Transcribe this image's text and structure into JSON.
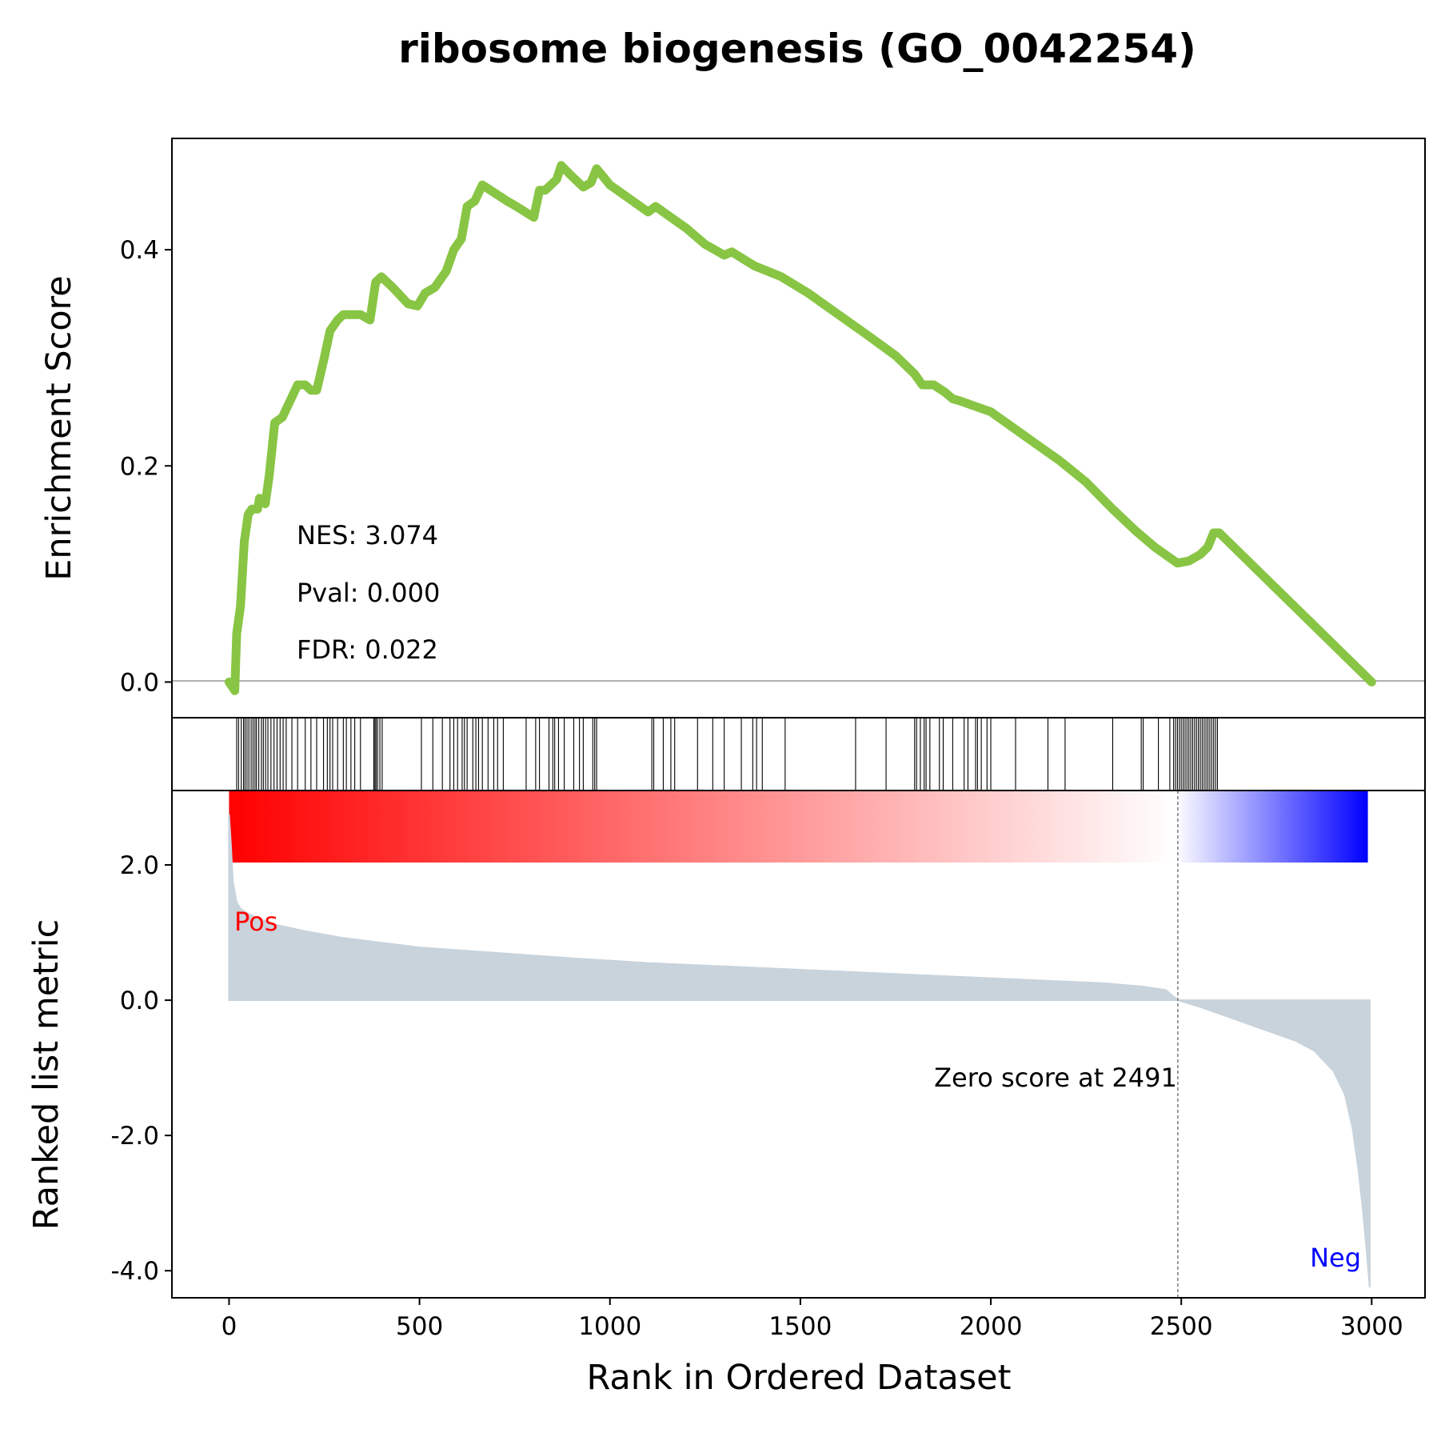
{
  "chart_data": {
    "type": "line",
    "title": "ribosome biogenesis (GO_0042254)",
    "xlabel": "Rank in Ordered Dataset",
    "xlim": [
      -150,
      3140
    ],
    "x_ticks": [
      0,
      500,
      1000,
      1500,
      2000,
      2500,
      3000
    ],
    "x_tick_labels": [
      "0",
      "500",
      "1000",
      "1500",
      "2000",
      "2500",
      "3000"
    ],
    "enrichment": {
      "ylabel": "Enrichment Score",
      "ylim": [
        -0.033,
        0.503
      ],
      "y_ticks": [
        0.0,
        0.2,
        0.4
      ],
      "y_tick_labels": [
        "0.0",
        "0.2",
        "0.4"
      ],
      "color": "#88c544",
      "stats": [
        "NES: 3.074",
        "Pval: 0.000",
        "FDR: 0.022"
      ],
      "points": [
        [
          0,
          0.0
        ],
        [
          15,
          -0.008
        ],
        [
          20,
          0.045
        ],
        [
          30,
          0.07
        ],
        [
          40,
          0.13
        ],
        [
          50,
          0.155
        ],
        [
          60,
          0.16
        ],
        [
          75,
          0.16
        ],
        [
          80,
          0.17
        ],
        [
          95,
          0.165
        ],
        [
          105,
          0.19
        ],
        [
          120,
          0.24
        ],
        [
          140,
          0.245
        ],
        [
          160,
          0.26
        ],
        [
          180,
          0.275
        ],
        [
          200,
          0.275
        ],
        [
          215,
          0.27
        ],
        [
          230,
          0.27
        ],
        [
          250,
          0.3
        ],
        [
          265,
          0.325
        ],
        [
          285,
          0.335
        ],
        [
          300,
          0.34
        ],
        [
          325,
          0.34
        ],
        [
          345,
          0.34
        ],
        [
          370,
          0.335
        ],
        [
          385,
          0.37
        ],
        [
          400,
          0.375
        ],
        [
          430,
          0.365
        ],
        [
          470,
          0.35
        ],
        [
          495,
          0.348
        ],
        [
          515,
          0.36
        ],
        [
          540,
          0.365
        ],
        [
          570,
          0.38
        ],
        [
          590,
          0.4
        ],
        [
          610,
          0.41
        ],
        [
          625,
          0.44
        ],
        [
          645,
          0.445
        ],
        [
          665,
          0.46
        ],
        [
          730,
          0.445
        ],
        [
          755,
          0.44
        ],
        [
          800,
          0.43
        ],
        [
          815,
          0.455
        ],
        [
          830,
          0.455
        ],
        [
          860,
          0.465
        ],
        [
          872,
          0.478
        ],
        [
          900,
          0.468
        ],
        [
          930,
          0.458
        ],
        [
          950,
          0.462
        ],
        [
          965,
          0.475
        ],
        [
          1000,
          0.46
        ],
        [
          1040,
          0.45
        ],
        [
          1080,
          0.44
        ],
        [
          1100,
          0.435
        ],
        [
          1120,
          0.44
        ],
        [
          1160,
          0.43
        ],
        [
          1200,
          0.42
        ],
        [
          1250,
          0.405
        ],
        [
          1300,
          0.395
        ],
        [
          1320,
          0.398
        ],
        [
          1380,
          0.385
        ],
        [
          1450,
          0.375
        ],
        [
          1520,
          0.36
        ],
        [
          1600,
          0.34
        ],
        [
          1680,
          0.32
        ],
        [
          1750,
          0.302
        ],
        [
          1800,
          0.285
        ],
        [
          1820,
          0.275
        ],
        [
          1850,
          0.275
        ],
        [
          1880,
          0.268
        ],
        [
          1900,
          0.262
        ],
        [
          1920,
          0.26
        ],
        [
          1960,
          0.255
        ],
        [
          2000,
          0.25
        ],
        [
          2060,
          0.235
        ],
        [
          2120,
          0.22
        ],
        [
          2180,
          0.205
        ],
        [
          2250,
          0.185
        ],
        [
          2320,
          0.16
        ],
        [
          2380,
          0.14
        ],
        [
          2430,
          0.125
        ],
        [
          2470,
          0.115
        ],
        [
          2490,
          0.11
        ],
        [
          2520,
          0.112
        ],
        [
          2550,
          0.118
        ],
        [
          2570,
          0.125
        ],
        [
          2585,
          0.138
        ],
        [
          2600,
          0.138
        ],
        [
          3000,
          0.0
        ]
      ],
      "hits": [
        20,
        25,
        32,
        38,
        42,
        47,
        52,
        58,
        63,
        68,
        72,
        78,
        85,
        90,
        96,
        102,
        110,
        118,
        126,
        134,
        142,
        150,
        165,
        180,
        200,
        215,
        230,
        248,
        258,
        265,
        272,
        285,
        300,
        308,
        320,
        330,
        345,
        380,
        383,
        386,
        390,
        396,
        402,
        505,
        535,
        560,
        580,
        590,
        600,
        612,
        618,
        625,
        640,
        648,
        655,
        665,
        680,
        695,
        705,
        720,
        780,
        805,
        815,
        840,
        850,
        855,
        865,
        880,
        905,
        920,
        930,
        955,
        960,
        965,
        1110,
        1115,
        1140,
        1160,
        1170,
        1230,
        1270,
        1300,
        1345,
        1375,
        1385,
        1400,
        1460,
        1645,
        1725,
        1800,
        1805,
        1815,
        1825,
        1830,
        1840,
        1865,
        1875,
        1900,
        1930,
        1940,
        1960,
        1965,
        1975,
        1990,
        2000,
        2065,
        2150,
        2195,
        2320,
        2395,
        2400,
        2440,
        2470,
        2480,
        2485,
        2490,
        2495,
        2500,
        2505,
        2510,
        2515,
        2520,
        2525,
        2530,
        2535,
        2540,
        2545,
        2550,
        2555,
        2560,
        2565,
        2570,
        2575,
        2580,
        2585,
        2590,
        2595
      ]
    },
    "ranked_metric": {
      "ylabel": "Ranked list metric",
      "ylim": [
        -4.4,
        3.1
      ],
      "y_ticks": [
        2.0,
        0.0,
        -2.0,
        -4.0
      ],
      "y_tick_labels": [
        "2.0",
        "0.0",
        "-2.0",
        "-4.0"
      ],
      "fill_color": "#c9d3dc",
      "zero_cross_rank": 2491,
      "zero_label": "Zero score at 2491",
      "pos_label": "Pos",
      "neg_label": "Neg",
      "pos_color": "#ff0000",
      "neg_color": "#0000ff",
      "points": [
        [
          0,
          2.75
        ],
        [
          5,
          2.3
        ],
        [
          10,
          1.75
        ],
        [
          20,
          1.45
        ],
        [
          30,
          1.35
        ],
        [
          50,
          1.28
        ],
        [
          80,
          1.2
        ],
        [
          120,
          1.12
        ],
        [
          200,
          1.02
        ],
        [
          300,
          0.92
        ],
        [
          400,
          0.85
        ],
        [
          500,
          0.78
        ],
        [
          700,
          0.7
        ],
        [
          900,
          0.62
        ],
        [
          1100,
          0.55
        ],
        [
          1300,
          0.5
        ],
        [
          1500,
          0.45
        ],
        [
          1700,
          0.4
        ],
        [
          1900,
          0.35
        ],
        [
          2100,
          0.3
        ],
        [
          2300,
          0.25
        ],
        [
          2400,
          0.2
        ],
        [
          2460,
          0.15
        ],
        [
          2491,
          0.0
        ],
        [
          2550,
          -0.1
        ],
        [
          2650,
          -0.3
        ],
        [
          2750,
          -0.5
        ],
        [
          2800,
          -0.6
        ],
        [
          2850,
          -0.75
        ],
        [
          2900,
          -1.05
        ],
        [
          2930,
          -1.4
        ],
        [
          2950,
          -1.9
        ],
        [
          2965,
          -2.5
        ],
        [
          2975,
          -3.0
        ],
        [
          2985,
          -3.6
        ],
        [
          2995,
          -4.25
        ]
      ]
    },
    "colorbar": {
      "low_color": "#0000ff",
      "high_color": "#ff0000"
    }
  }
}
